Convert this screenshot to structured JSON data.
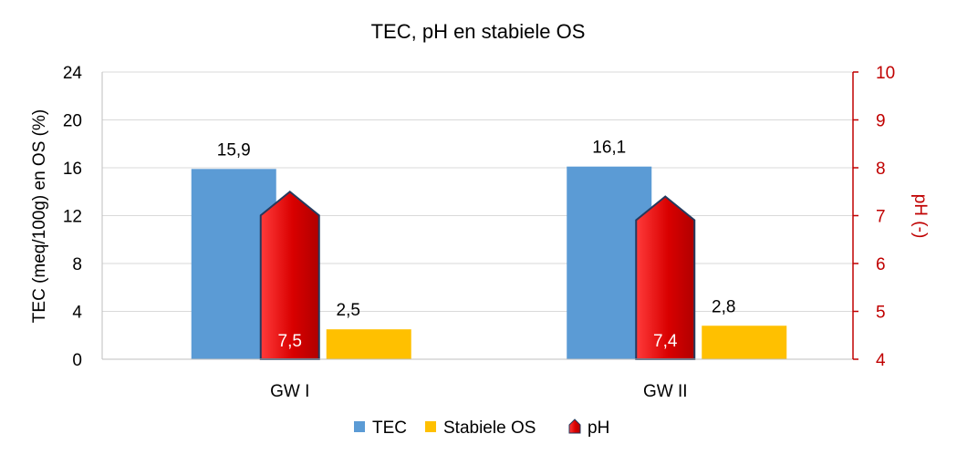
{
  "chart_data": {
    "type": "bar",
    "title": "TEC, pH en stabiele OS",
    "categories": [
      "GW I",
      "GW II"
    ],
    "series": [
      {
        "name": "TEC",
        "axis": "left",
        "values": [
          15.9,
          16.1
        ],
        "labels": [
          "15,9",
          "16,1"
        ],
        "color": "#5B9BD5"
      },
      {
        "name": "pH",
        "axis": "right",
        "values": [
          7.5,
          7.4
        ],
        "labels": [
          "7,5",
          "7,4"
        ],
        "color": "#C00000"
      },
      {
        "name": "Stabiele OS",
        "axis": "left",
        "values": [
          2.5,
          2.8
        ],
        "labels": [
          "2,5",
          "2,8"
        ],
        "color": "#FFC000"
      }
    ],
    "legend_order": [
      "TEC",
      "Stabiele OS",
      "pH"
    ],
    "legend_position": "bottom",
    "ylabel": "TEC (meq/100g) en OS (%)",
    "y2label": "pH (-)",
    "ylim": [
      0,
      24
    ],
    "y2lim": [
      4,
      10
    ],
    "yticks": [
      "0",
      "4",
      "8",
      "12",
      "16",
      "20",
      "24"
    ],
    "y2ticks": [
      "4",
      "5",
      "6",
      "7",
      "8",
      "9",
      "10"
    ],
    "grid": true,
    "y2_color": "#C00000"
  }
}
